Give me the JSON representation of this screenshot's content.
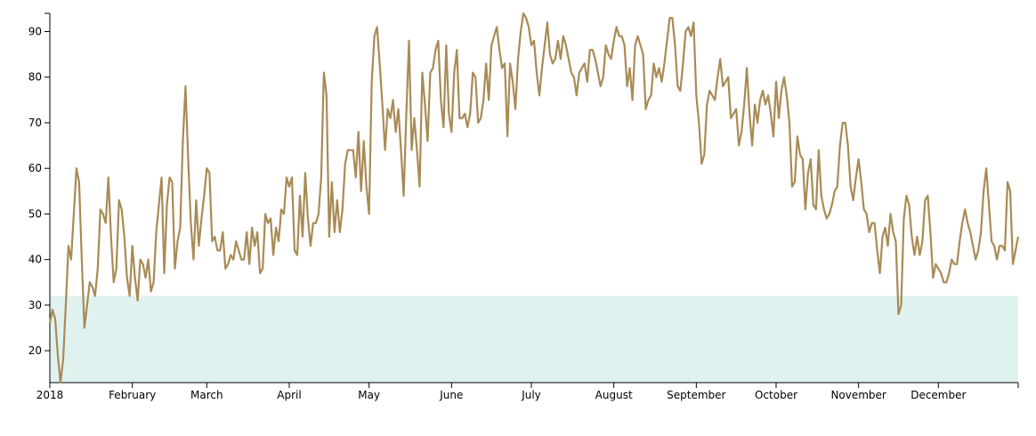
{
  "chart_data": {
    "type": "line",
    "color": "#a88b55",
    "shade_below": 32,
    "shade_color": "#dff2f0",
    "values": [
      26,
      29,
      27,
      19,
      13,
      18,
      30,
      43,
      40,
      50,
      60,
      57,
      40,
      25,
      30,
      35,
      34,
      32,
      38,
      51,
      50,
      48,
      58,
      45,
      35,
      38,
      53,
      51,
      45,
      36,
      32,
      43,
      36,
      31,
      40,
      39,
      36,
      40,
      33,
      35,
      46,
      52,
      58,
      37,
      52,
      58,
      57,
      38,
      44,
      47,
      66,
      78,
      62,
      48,
      40,
      53,
      43,
      49,
      54,
      60,
      59,
      44,
      45,
      42,
      42,
      46,
      38,
      39,
      41,
      40,
      44,
      42,
      40,
      40,
      46,
      39,
      47,
      43,
      46,
      37,
      38,
      50,
      48,
      49,
      41,
      47,
      44,
      51,
      50,
      58,
      56,
      58,
      42,
      41,
      54,
      45,
      59,
      49,
      43,
      48,
      48,
      50,
      58,
      81,
      76,
      45,
      57,
      46,
      53,
      46,
      51,
      61,
      64,
      64,
      64,
      58,
      68,
      55,
      66,
      56,
      50,
      79,
      89,
      91,
      83,
      74,
      64,
      73,
      71,
      75,
      68,
      73,
      64,
      54,
      72,
      88,
      64,
      71,
      64,
      56,
      81,
      74,
      66,
      81,
      82,
      86,
      88,
      75,
      69,
      87,
      72,
      68,
      81,
      86,
      71,
      71,
      72,
      69,
      72,
      81,
      80,
      70,
      71,
      75,
      83,
      75,
      87,
      89,
      91,
      86,
      82,
      83,
      67,
      83,
      79,
      73,
      84,
      90,
      94,
      93,
      91,
      87,
      88,
      81,
      76,
      82,
      87,
      92,
      85,
      83,
      84,
      88,
      84,
      89,
      87,
      84,
      81,
      80,
      76,
      81,
      82,
      83,
      79,
      86,
      86,
      84,
      81,
      78,
      80,
      87,
      85,
      84,
      88,
      91,
      89,
      89,
      87,
      78,
      82,
      75,
      87,
      89,
      87,
      85,
      73,
      75,
      76,
      83,
      80,
      82,
      79,
      83,
      88,
      93,
      93,
      87,
      78,
      77,
      83,
      90,
      91,
      89,
      92,
      76,
      70,
      61,
      63,
      74,
      77,
      76,
      75,
      80,
      84,
      78,
      79,
      80,
      71,
      72,
      73,
      65,
      68,
      74,
      82,
      72,
      65,
      74,
      70,
      75,
      77,
      74,
      76,
      72,
      67,
      79,
      71,
      77,
      80,
      76,
      70,
      56,
      57,
      67,
      63,
      62,
      51,
      59,
      62,
      52,
      51,
      64,
      54,
      51,
      49,
      50,
      52,
      55,
      56,
      65,
      70,
      70,
      65,
      56,
      53,
      58,
      62,
      57,
      51,
      50,
      46,
      48,
      48,
      42,
      37,
      45,
      47,
      43,
      50,
      46,
      44,
      28,
      30,
      49,
      54,
      52,
      45,
      41,
      45,
      41,
      44,
      53,
      54,
      46,
      36,
      39,
      38,
      37,
      35,
      35,
      37,
      40,
      39,
      39,
      44,
      48,
      51,
      48,
      46,
      43,
      40,
      42,
      46,
      55,
      60,
      52,
      44,
      43,
      40,
      43,
      43,
      42,
      57,
      55,
      39,
      42,
      45
    ],
    "xlim": [
      0,
      364
    ],
    "xticks": [
      {
        "value": 0,
        "label": "2018"
      },
      {
        "value": 31,
        "label": "February"
      },
      {
        "value": 59,
        "label": "March"
      },
      {
        "value": 90,
        "label": "April"
      },
      {
        "value": 120,
        "label": "May"
      },
      {
        "value": 151,
        "label": "June"
      },
      {
        "value": 181,
        "label": "July"
      },
      {
        "value": 212,
        "label": "August"
      },
      {
        "value": 243,
        "label": "September"
      },
      {
        "value": 273,
        "label": "October"
      },
      {
        "value": 304,
        "label": "November"
      },
      {
        "value": 334,
        "label": "December"
      }
    ],
    "ylim": [
      13,
      94
    ],
    "yticks": [
      20,
      30,
      40,
      50,
      60,
      70,
      80,
      90
    ]
  }
}
